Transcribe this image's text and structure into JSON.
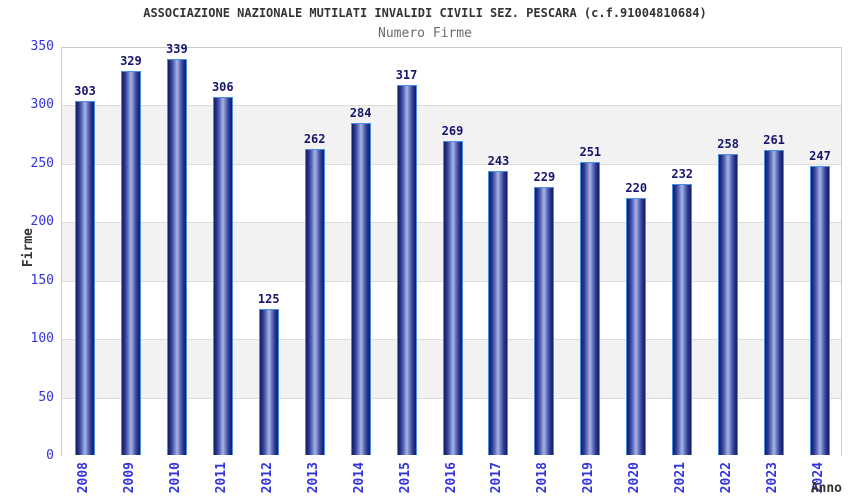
{
  "header": {
    "title": "ASSOCIAZIONE NAZIONALE MUTILATI INVALIDI CIVILI SEZ. PESCARA (c.f.91004810684)",
    "subtitle": "Numero Firme"
  },
  "chart_data": {
    "type": "bar",
    "title": "ASSOCIAZIONE NAZIONALE MUTILATI INVALIDI CIVILI SEZ. PESCARA (c.f.91004810684)",
    "subtitle": "Numero Firme",
    "xlabel": "Anno",
    "ylabel": "Firme",
    "categories": [
      "2008",
      "2009",
      "2010",
      "2011",
      "2012",
      "2013",
      "2014",
      "2015",
      "2016",
      "2017",
      "2018",
      "2019",
      "2020",
      "2021",
      "2022",
      "2023",
      "2024"
    ],
    "values": [
      303,
      329,
      339,
      306,
      125,
      262,
      284,
      317,
      269,
      243,
      229,
      251,
      220,
      232,
      258,
      261,
      247
    ],
    "ylim": [
      0,
      350
    ],
    "ytick_step": 50,
    "yticks": [
      0,
      50,
      100,
      150,
      200,
      250,
      300,
      350
    ],
    "grid": "horizontal-bands",
    "legend": "none",
    "colors": {
      "bar_edge": "#1c2678",
      "bar_highlight": "#a8b3e6",
      "bar_border": "#4a90e2",
      "tick_label": "#3434dd",
      "value_label": "#16166e",
      "title": "#333333",
      "subtitle": "#6b6b6b",
      "axis_label": "#333333",
      "band_gray": "#f2f2f2",
      "band_white": "#ffffff",
      "grid_line": "#dcdcdc",
      "plot_border": "#cccccc"
    }
  }
}
